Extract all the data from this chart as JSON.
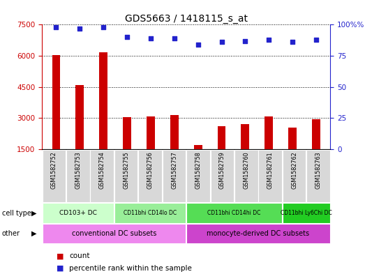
{
  "title": "GDS5663 / 1418115_s_at",
  "samples": [
    "GSM1582752",
    "GSM1582753",
    "GSM1582754",
    "GSM1582755",
    "GSM1582756",
    "GSM1582757",
    "GSM1582758",
    "GSM1582759",
    "GSM1582760",
    "GSM1582761",
    "GSM1582762",
    "GSM1582763"
  ],
  "counts": [
    6020,
    4580,
    6180,
    3060,
    3100,
    3160,
    1720,
    2620,
    2720,
    3090,
    2560,
    2960
  ],
  "percentiles": [
    98,
    97,
    98,
    90,
    89,
    89,
    84,
    86,
    87,
    88,
    86,
    88
  ],
  "ylim_left": [
    1500,
    7500
  ],
  "yticks_left": [
    1500,
    3000,
    4500,
    6000,
    7500
  ],
  "ylim_right": [
    0,
    100
  ],
  "yticks_right": [
    0,
    25,
    50,
    75,
    100
  ],
  "bar_color": "#cc0000",
  "dot_color": "#2222cc",
  "cell_type_labels": [
    {
      "label": "CD103+ DC",
      "start": 0,
      "end": 2,
      "color": "#ccffcc"
    },
    {
      "label": "CD11bhi CD14lo DC",
      "start": 3,
      "end": 5,
      "color": "#99ee99"
    },
    {
      "label": "CD11bhi CD14hi DC",
      "start": 6,
      "end": 9,
      "color": "#55dd55"
    },
    {
      "label": "CD11bhi Ly6Chi DC",
      "start": 10,
      "end": 11,
      "color": "#22cc22"
    }
  ],
  "other_labels": [
    {
      "label": "conventional DC subsets",
      "start": 0,
      "end": 5,
      "color": "#ee88ee"
    },
    {
      "label": "monocyte-derived DC subsets",
      "start": 6,
      "end": 11,
      "color": "#cc44cc"
    }
  ],
  "legend_count_label": "count",
  "legend_pct_label": "percentile rank within the sample",
  "cell_type_row_label": "cell type",
  "other_row_label": "other",
  "bar_color_left": "#cc0000",
  "axis_color_right": "#2222cc",
  "bg_color": "#d8d8d8"
}
